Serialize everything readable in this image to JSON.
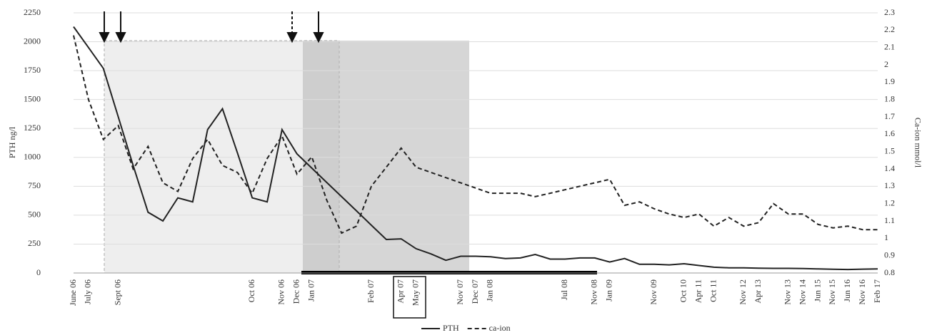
{
  "chart_data": {
    "type": "line",
    "y_label": "PTH ng/l",
    "y2_label": "Ca-ion mmol/l",
    "categories": [
      "June 06",
      "July 06",
      null,
      "Sept 06",
      null,
      null,
      null,
      null,
      null,
      null,
      null,
      null,
      "Oct 06",
      null,
      "Nov 06",
      "Dec 06",
      "Jan 07",
      null,
      null,
      null,
      "Feb 07",
      null,
      "Apr 07",
      "May 07",
      null,
      null,
      "Nov 07",
      "Dec 07",
      "Jan 08",
      null,
      null,
      null,
      null,
      "Jul 08",
      null,
      "Nov 08",
      "Jan 09",
      null,
      null,
      "Nov 09",
      null,
      "Oct 10",
      "Apr 11",
      "Oct 11",
      null,
      "Nov 12",
      "Apr 13",
      null,
      "Nov 13",
      "Nov 14",
      "Jun 15",
      "Nov 15",
      "Jun 16",
      "Nov 16",
      "Feb 17"
    ],
    "series": [
      {
        "name": "PTH",
        "color": "#222222",
        "dash": false,
        "values": [
          2130,
          1950,
          1770,
          1350,
          930,
          525,
          450,
          650,
          615,
          1240,
          1420,
          1040,
          650,
          615,
          1240,
          1030,
          907,
          783,
          660,
          537,
          413,
          290,
          295,
          210,
          165,
          110,
          145,
          145,
          140,
          125,
          130,
          160,
          120,
          120,
          130,
          130,
          95,
          125,
          75,
          75,
          70,
          80,
          65,
          50,
          45,
          45,
          42,
          40,
          40,
          38,
          35,
          32,
          30,
          33,
          36
        ]
      },
      {
        "name": "ca-ion",
        "color": "#222222",
        "dash": true,
        "axis": "y2",
        "values": [
          2.17,
          1.8,
          1.57,
          1.65,
          1.4,
          1.53,
          1.32,
          1.27,
          1.46,
          1.57,
          1.42,
          1.38,
          1.26,
          1.46,
          1.59,
          1.37,
          1.47,
          1.22,
          1.03,
          1.07,
          1.3,
          1.41,
          1.52,
          1.41,
          1.38,
          1.35,
          1.32,
          1.29,
          1.26,
          1.26,
          1.26,
          1.24,
          1.26,
          1.28,
          1.3,
          1.32,
          1.34,
          1.19,
          1.21,
          1.17,
          1.14,
          1.12,
          1.14,
          1.07,
          1.12,
          1.07,
          1.09,
          1.2,
          1.14,
          1.14,
          1.08,
          1.06,
          1.07,
          1.05,
          1.05
        ]
      }
    ],
    "ylim": [
      0,
      2250
    ],
    "yticks": [
      0,
      250,
      500,
      750,
      1000,
      1250,
      1500,
      1750,
      2000,
      2250
    ],
    "y2lim": [
      0.8,
      2.3
    ],
    "y2ticks": [
      0.8,
      0.9,
      1,
      1.1,
      1.2,
      1.3,
      1.4,
      1.5,
      1.6,
      1.7,
      1.8,
      1.9,
      2,
      2.1,
      2.2,
      2.3
    ],
    "grid": true
  }
}
